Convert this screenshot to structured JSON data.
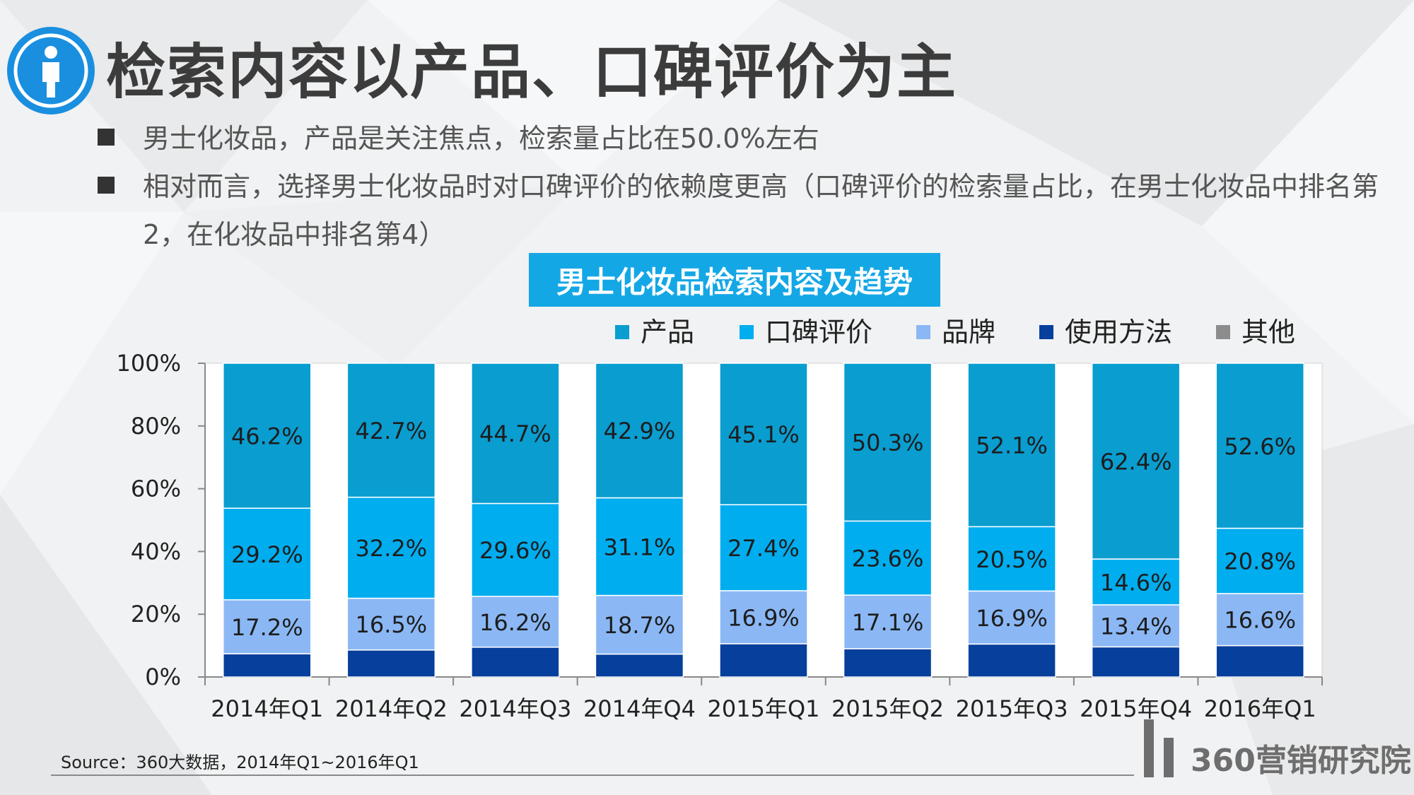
{
  "title": "检索内容以产品、口碑评价为主",
  "bullets": [
    "男士化妆品，产品是关注焦点，检索量占比在50.0%左右",
    "相对而言，选择男士化妆品时对口碑评价的依赖度更高（口碑评价的检索量占比，在男士化妆品中排名第2，在化妆品中排名第4）"
  ],
  "source": "Source：360大数据，2014年Q1~2016年Q1",
  "logo_text": "360营销研究院",
  "chart_data": {
    "type": "bar",
    "stacked": true,
    "title": "男士化妆品检索内容及趋势",
    "categories": [
      "2014年Q1",
      "2014年Q2",
      "2014年Q3",
      "2014年Q4",
      "2015年Q1",
      "2015年Q2",
      "2015年Q3",
      "2015年Q4",
      "2016年Q1"
    ],
    "ylim": [
      0,
      100
    ],
    "yticks": [
      "0%",
      "20%",
      "40%",
      "60%",
      "80%",
      "100%"
    ],
    "legend_position": "top-right",
    "series": [
      {
        "name": "使用方法",
        "color": "#063f9c",
        "values": [
          7.4,
          8.6,
          9.5,
          7.3,
          10.6,
          9.0,
          10.5,
          9.6,
          10.0
        ],
        "labels": []
      },
      {
        "name": "品牌",
        "color": "#8bb8f5",
        "values": [
          17.2,
          16.5,
          16.2,
          18.7,
          16.9,
          17.1,
          16.9,
          13.4,
          16.6
        ],
        "labels": [
          "17.2%",
          "16.5%",
          "16.2%",
          "18.7%",
          "16.9%",
          "17.1%",
          "16.9%",
          "13.4%",
          "16.6%"
        ]
      },
      {
        "name": "口碑评价",
        "color": "#00adef",
        "values": [
          29.2,
          32.2,
          29.6,
          31.1,
          27.4,
          23.6,
          20.5,
          14.6,
          20.8
        ],
        "labels": [
          "29.2%",
          "32.2%",
          "29.6%",
          "31.1%",
          "27.4%",
          "23.6%",
          "20.5%",
          "14.6%",
          "20.8%"
        ]
      },
      {
        "name": "产品",
        "color": "#0a9dd0",
        "values": [
          46.2,
          42.7,
          44.7,
          42.9,
          45.1,
          50.3,
          52.1,
          62.4,
          52.6
        ],
        "labels": [
          "46.2%",
          "42.7%",
          "44.7%",
          "42.9%",
          "45.1%",
          "50.3%",
          "52.1%",
          "62.4%",
          "52.6%"
        ]
      },
      {
        "name": "其他",
        "color": "#8c8c8c",
        "values": [
          0,
          0,
          0,
          0,
          0,
          0,
          0,
          0,
          0
        ],
        "labels": []
      }
    ],
    "legend_order": [
      "产品",
      "口碑评价",
      "品牌",
      "使用方法",
      "其他"
    ]
  }
}
